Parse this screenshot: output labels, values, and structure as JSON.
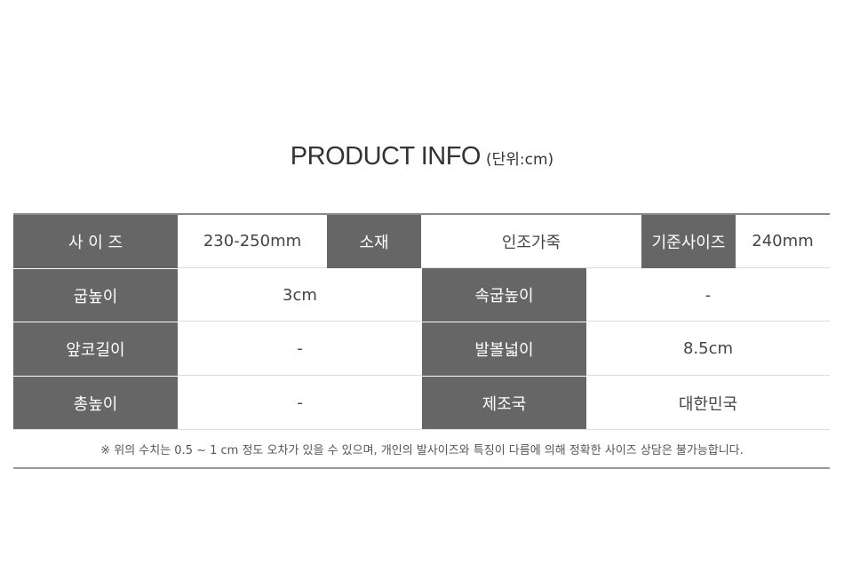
{
  "header": {
    "title": "PRODUCT INFO",
    "unit": "(단위:cm)"
  },
  "row1": [
    {
      "label": "사 이 즈",
      "value": "230-250mm"
    },
    {
      "label": "소재",
      "value": "인조가죽"
    },
    {
      "label": "기준사이즈",
      "value": "240mm"
    }
  ],
  "rows": [
    [
      {
        "label": "굽높이",
        "value": "3cm"
      },
      {
        "label": "속굽높이",
        "value": "-"
      }
    ],
    [
      {
        "label": "앞코길이",
        "value": "-"
      },
      {
        "label": "발볼넓이",
        "value": "8.5cm"
      }
    ],
    [
      {
        "label": "총높이",
        "value": "-"
      },
      {
        "label": "제조국",
        "value": "대한민국"
      }
    ]
  ],
  "note": "※ 위의 수치는 0.5 ~ 1 cm 정도 오차가 있을 수 있으며, 개인의 발사이즈와 특징이 다름에 의해 정확한 사이즈 상담은 불가능합니다.",
  "colors": {
    "header_cell": "#666666",
    "text": "#444444"
  }
}
